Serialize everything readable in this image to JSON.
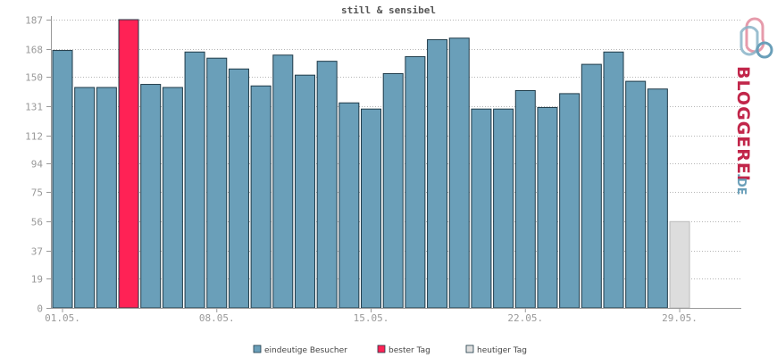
{
  "chart_data": {
    "type": "bar",
    "title": "still & sensibel",
    "xlabel": "",
    "ylabel": "",
    "ylim": [
      0,
      187
    ],
    "yticks": [
      0,
      19,
      37,
      56,
      75,
      94,
      112,
      131,
      150,
      168,
      187
    ],
    "xtick_labels": [
      {
        "index": 0,
        "label": "01.05."
      },
      {
        "index": 7,
        "label": "08.05."
      },
      {
        "index": 14,
        "label": "15.05."
      },
      {
        "index": 21,
        "label": "22.05."
      },
      {
        "index": 28,
        "label": "29.05."
      }
    ],
    "grid": true,
    "legend_position": "bottom",
    "series": [
      {
        "name": "eindeutige Besucher",
        "color": "#6a9fb9",
        "values": [
          167,
          143,
          143,
          null,
          145,
          143,
          166,
          162,
          155,
          144,
          164,
          151,
          160,
          133,
          129,
          152,
          163,
          174,
          175,
          129,
          129,
          141,
          130,
          139,
          158,
          166,
          147,
          142,
          null,
          null,
          null
        ]
      },
      {
        "name": "bester Tag",
        "color": "#ff2255",
        "values": [
          null,
          null,
          null,
          187,
          null,
          null,
          null,
          null,
          null,
          null,
          null,
          null,
          null,
          null,
          null,
          null,
          null,
          null,
          null,
          null,
          null,
          null,
          null,
          null,
          null,
          null,
          null,
          null,
          null,
          null,
          null
        ]
      },
      {
        "name": "heutiger Tag",
        "color": "#dddddd",
        "values": [
          null,
          null,
          null,
          null,
          null,
          null,
          null,
          null,
          null,
          null,
          null,
          null,
          null,
          null,
          null,
          null,
          null,
          null,
          null,
          null,
          null,
          null,
          null,
          null,
          null,
          null,
          null,
          null,
          56,
          null,
          null
        ]
      }
    ]
  },
  "logo": {
    "text": "BLOGGEREI",
    "suffix": ".DE",
    "color_primary": "#c1264a",
    "color_secondary": "#6a9fb9"
  }
}
